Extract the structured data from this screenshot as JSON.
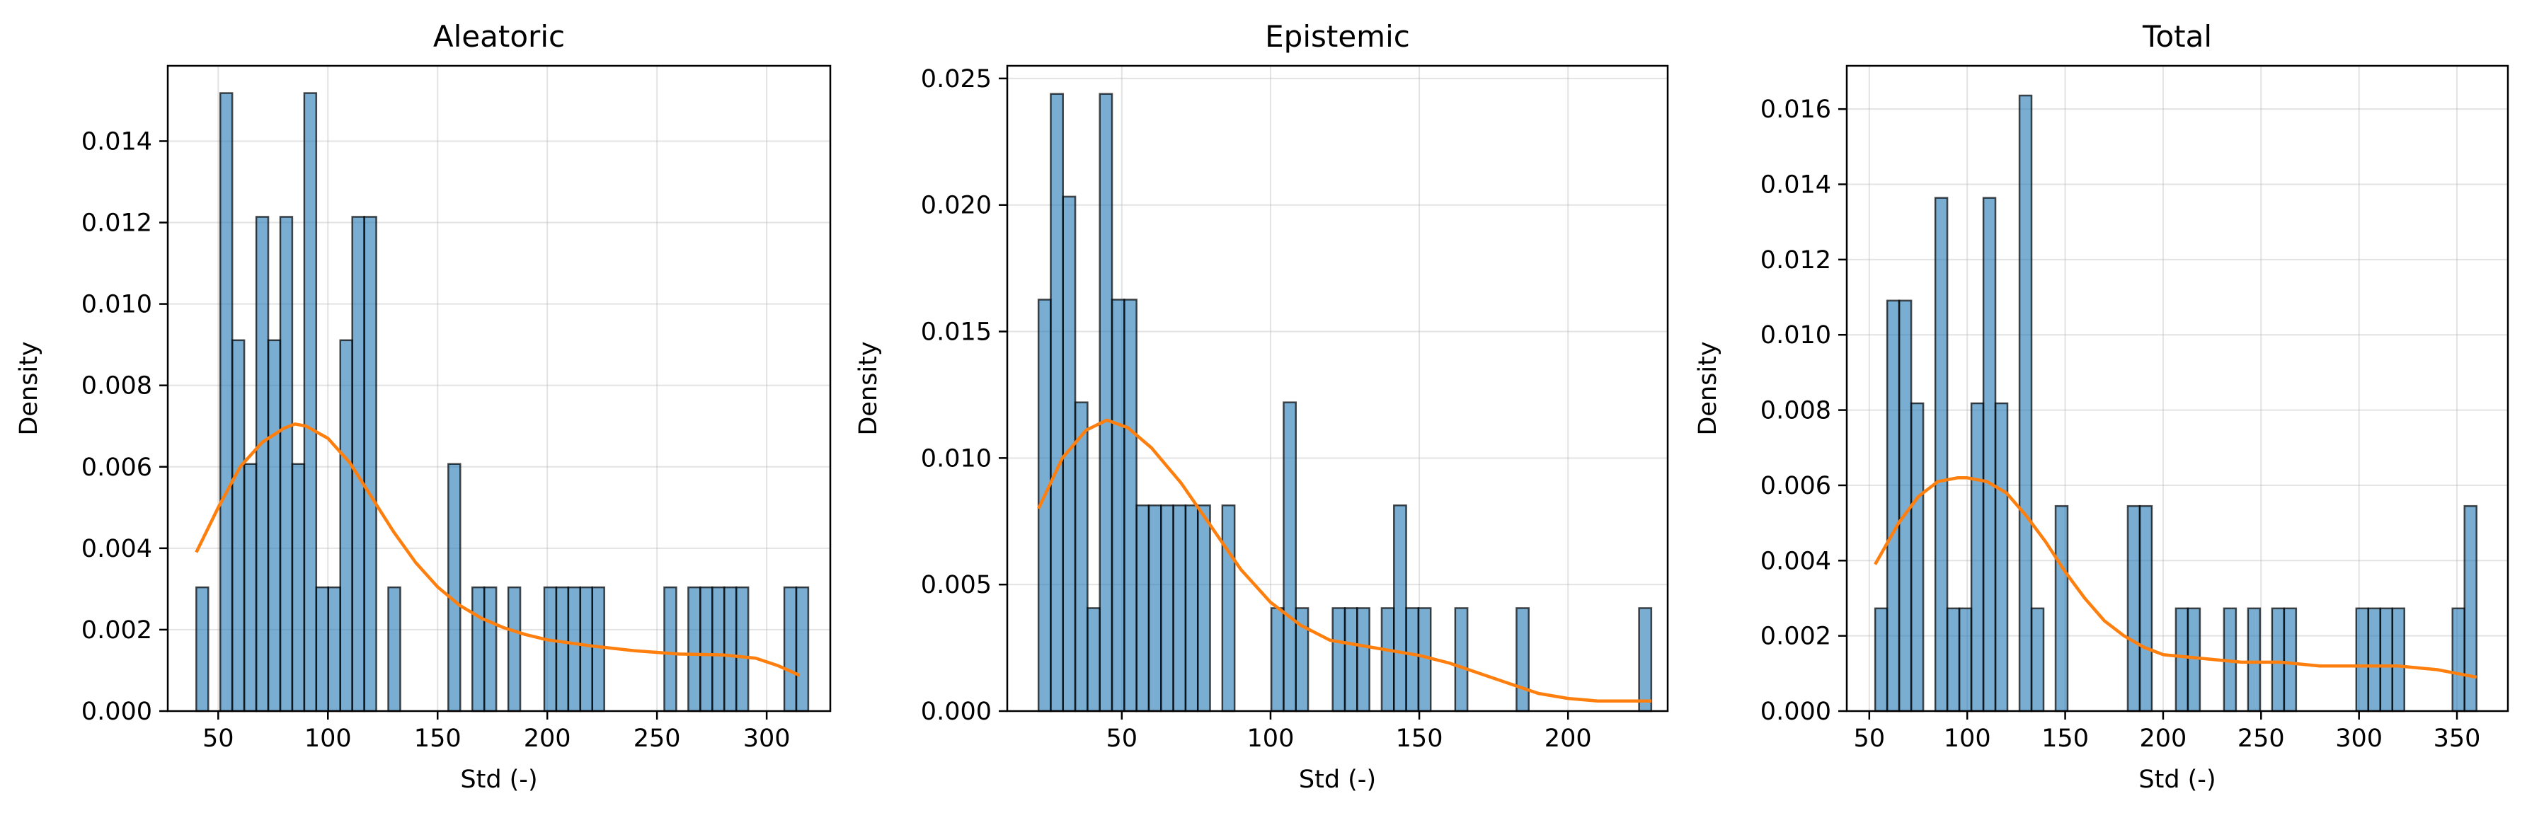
{
  "colors": {
    "bar_fill": "#1f77b4",
    "bar_edge": "#000000",
    "kde_line": "#ff7f0e",
    "grid": "#b0b0b0"
  },
  "chart_data": [
    {
      "type": "bar",
      "title": "Aleatoric",
      "xlabel": "Std (-)",
      "ylabel": "Density",
      "xlim": [
        27,
        329
      ],
      "ylim": [
        0,
        0.01585
      ],
      "xticks": [
        50,
        100,
        150,
        200,
        250,
        300
      ],
      "xtick_labels": [
        "50",
        "100",
        "150",
        "200",
        "250",
        "300"
      ],
      "yticks": [
        0,
        0.002,
        0.004,
        0.006,
        0.008,
        0.01,
        0.012,
        0.014
      ],
      "ytick_labels": [
        "0.000",
        "0.002",
        "0.004",
        "0.006",
        "0.008",
        "0.010",
        "0.012",
        "0.014"
      ],
      "grid": true,
      "bin_start": 40,
      "bin_width": 5.47,
      "values": [
        0.00304,
        0,
        0.01518,
        0.00911,
        0.00607,
        0.01214,
        0.00911,
        0.01214,
        0.00607,
        0.01518,
        0.00304,
        0.00304,
        0.00911,
        0.01214,
        0.01214,
        0,
        0.00304,
        0,
        0,
        0,
        0,
        0.00607,
        0,
        0.00304,
        0.00304,
        0,
        0.00304,
        0,
        0,
        0.00304,
        0.00304,
        0.00304,
        0.00304,
        0.00304,
        0,
        0,
        0,
        0,
        0,
        0.00304,
        0,
        0.00304,
        0.00304,
        0.00304,
        0.00304,
        0.00304,
        0,
        0,
        0,
        0.00304,
        0.00304
      ],
      "kde": {
        "x": [
          40,
          50,
          60,
          70,
          80,
          85,
          90,
          100,
          110,
          120,
          130,
          140,
          150,
          160,
          170,
          180,
          190,
          200,
          220,
          240,
          260,
          280,
          295,
          305,
          315
        ],
        "y": [
          0.0039,
          0.005,
          0.006,
          0.0066,
          0.00695,
          0.00705,
          0.007,
          0.0067,
          0.0061,
          0.00525,
          0.0044,
          0.00365,
          0.00305,
          0.0026,
          0.00228,
          0.00205,
          0.00188,
          0.00175,
          0.0016,
          0.00148,
          0.0014,
          0.00138,
          0.0013,
          0.00112,
          0.00088
        ]
      }
    },
    {
      "type": "bar",
      "title": "Epistemic",
      "xlabel": "Std (-)",
      "ylabel": "Density",
      "xlim": [
        11.5,
        233.5
      ],
      "ylim": [
        0,
        0.0255
      ],
      "xticks": [
        50,
        100,
        150,
        200
      ],
      "xtick_labels": [
        "50",
        "100",
        "150",
        "200"
      ],
      "yticks": [
        0,
        0.005,
        0.01,
        0.015,
        0.02,
        0.025
      ],
      "ytick_labels": [
        "0.000",
        "0.005",
        "0.010",
        "0.015",
        "0.020",
        "0.025"
      ],
      "grid": true,
      "bin_start": 22,
      "bin_width": 4.12,
      "values": [
        0.01626,
        0.02439,
        0.02033,
        0.0122,
        0.00407,
        0.02439,
        0.01626,
        0.01626,
        0.00813,
        0.00813,
        0.00813,
        0.00813,
        0.00813,
        0.00813,
        0,
        0.00813,
        0,
        0,
        0,
        0.00407,
        0.0122,
        0.00407,
        0,
        0,
        0.00407,
        0.00407,
        0.00407,
        0,
        0.00407,
        0.00813,
        0.00407,
        0.00407,
        0,
        0,
        0.00407,
        0,
        0,
        0,
        0,
        0.00407,
        0,
        0,
        0,
        0,
        0,
        0,
        0,
        0,
        0,
        0.00407
      ],
      "kde": {
        "x": [
          22,
          30,
          38,
          45,
          52,
          60,
          70,
          80,
          90,
          100,
          110,
          120,
          130,
          140,
          150,
          160,
          170,
          180,
          190,
          200,
          210,
          220,
          228
        ],
        "y": [
          0.008,
          0.01,
          0.0111,
          0.0115,
          0.0112,
          0.0104,
          0.009,
          0.0073,
          0.0056,
          0.0043,
          0.0034,
          0.0028,
          0.0026,
          0.0024,
          0.0022,
          0.0019,
          0.0015,
          0.0011,
          0.0007,
          0.0005,
          0.0004,
          0.0004,
          0.0004
        ]
      }
    },
    {
      "type": "bar",
      "title": "Total",
      "xlabel": "Std (-)",
      "ylabel": "Density",
      "xlim": [
        38.5,
        376
      ],
      "ylim": [
        0,
        0.01715
      ],
      "xticks": [
        50,
        100,
        150,
        200,
        250,
        300,
        350
      ],
      "xtick_labels": [
        "50",
        "100",
        "150",
        "200",
        "250",
        "300",
        "350"
      ],
      "yticks": [
        0,
        0.002,
        0.004,
        0.006,
        0.008,
        0.01,
        0.012,
        0.014,
        0.016
      ],
      "ytick_labels": [
        "0.000",
        "0.002",
        "0.004",
        "0.006",
        "0.008",
        "0.010",
        "0.012",
        "0.014",
        "0.016"
      ],
      "grid": true,
      "bin_start": 53,
      "bin_width": 6.14,
      "values": [
        0.00273,
        0.01091,
        0.01091,
        0.00818,
        0,
        0.01364,
        0.00273,
        0.00273,
        0.00818,
        0.01364,
        0.00818,
        0,
        0.01636,
        0.00273,
        0,
        0.00545,
        0,
        0,
        0,
        0,
        0,
        0.00545,
        0.00545,
        0,
        0,
        0.00273,
        0.00273,
        0,
        0,
        0.00273,
        0,
        0.00273,
        0,
        0.00273,
        0.00273,
        0,
        0,
        0,
        0,
        0,
        0.00273,
        0.00273,
        0.00273,
        0.00273,
        0,
        0,
        0,
        0,
        0.00273,
        0.00545
      ],
      "kde": {
        "x": [
          53,
          65,
          75,
          85,
          95,
          100,
          110,
          120,
          130,
          140,
          150,
          160,
          170,
          180,
          190,
          200,
          220,
          240,
          260,
          280,
          300,
          320,
          340,
          350,
          360
        ],
        "y": [
          0.0039,
          0.005,
          0.0057,
          0.0061,
          0.0062,
          0.0062,
          0.0061,
          0.0058,
          0.0052,
          0.0045,
          0.0037,
          0.003,
          0.0024,
          0.002,
          0.0017,
          0.0015,
          0.0014,
          0.0013,
          0.0013,
          0.0012,
          0.0012,
          0.0012,
          0.0011,
          0.001,
          0.0009
        ]
      }
    }
  ]
}
